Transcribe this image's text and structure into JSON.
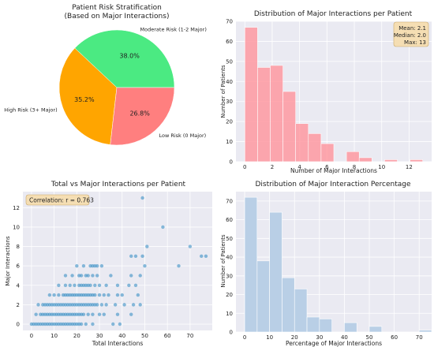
{
  "chart_data": [
    {
      "type": "pie",
      "title": "Patient Risk Stratification\n(Based on Major Interactions)",
      "slices": [
        {
          "label": "Moderate Risk (1-2 Major)",
          "pct_text": "38.0%",
          "value": 38.0,
          "color": "#4bea82"
        },
        {
          "label": "High Risk (3+ Major)",
          "pct_text": "35.2%",
          "value": 35.2,
          "color": "#ffa500"
        },
        {
          "label": "Low Risk (0 Major)",
          "pct_text": "26.8%",
          "value": 26.8,
          "color": "#ff7f7f"
        }
      ]
    },
    {
      "type": "bar",
      "title": "Distribution of Major Interactions per Patient",
      "xlabel": "Number of Major Interactions",
      "ylabel": "Number of Patients",
      "xlim": [
        -0.65,
        13.65
      ],
      "ylim": [
        0,
        70
      ],
      "xticks": [
        0,
        2,
        4,
        6,
        8,
        10,
        12
      ],
      "yticks": [
        0,
        10,
        20,
        30,
        40,
        50,
        60,
        70
      ],
      "bin_width": 0.929,
      "bin_starts": [
        0,
        0.929,
        1.857,
        2.786,
        3.714,
        4.643,
        5.571,
        6.5,
        7.429,
        8.357,
        9.286,
        10.214,
        11.143,
        12.071
      ],
      "values": [
        67,
        47,
        48,
        35,
        19,
        14,
        9,
        0,
        5,
        2,
        0,
        1,
        0,
        1
      ],
      "color": "#ff9aa2",
      "stats_box": [
        "Mean: 2.1",
        "Median: 2.0",
        "Max: 13"
      ],
      "grid": true
    },
    {
      "type": "scatter",
      "title": "Total vs Major Interactions per Patient",
      "xlabel": "Total Interactions",
      "ylabel": "Major Interactions",
      "xlim": [
        -3.8,
        79.8
      ],
      "ylim": [
        -0.65,
        13.65
      ],
      "xticks": [
        0,
        10,
        20,
        30,
        40,
        50,
        60,
        70
      ],
      "yticks": [
        0,
        2,
        4,
        6,
        8,
        10,
        12
      ],
      "annotation": "Correlation: r = 0.763",
      "color": "#3b8fc4",
      "points": [
        [
          0,
          0
        ],
        [
          1,
          0
        ],
        [
          2,
          0
        ],
        [
          3,
          0
        ],
        [
          4,
          0
        ],
        [
          5,
          0
        ],
        [
          6,
          0
        ],
        [
          7,
          0
        ],
        [
          8,
          0
        ],
        [
          9,
          0
        ],
        [
          10,
          0
        ],
        [
          11,
          0
        ],
        [
          12,
          0
        ],
        [
          13,
          0
        ],
        [
          14,
          0
        ],
        [
          15,
          0
        ],
        [
          16,
          0
        ],
        [
          17,
          0
        ],
        [
          18,
          0
        ],
        [
          19,
          0
        ],
        [
          20,
          0
        ],
        [
          21,
          0
        ],
        [
          22,
          0
        ],
        [
          24,
          0
        ],
        [
          27,
          0
        ],
        [
          36,
          0
        ],
        [
          39,
          0
        ],
        [
          2,
          1
        ],
        [
          4,
          1
        ],
        [
          5,
          1
        ],
        [
          6,
          1
        ],
        [
          7,
          1
        ],
        [
          8,
          1
        ],
        [
          9,
          1
        ],
        [
          10,
          1
        ],
        [
          11,
          1
        ],
        [
          12,
          1
        ],
        [
          13,
          1
        ],
        [
          14,
          1
        ],
        [
          15,
          1
        ],
        [
          16,
          1
        ],
        [
          17,
          1
        ],
        [
          18,
          1
        ],
        [
          19,
          1
        ],
        [
          20,
          1
        ],
        [
          21,
          1
        ],
        [
          22,
          1
        ],
        [
          23,
          1
        ],
        [
          25,
          1
        ],
        [
          27,
          1
        ],
        [
          30,
          1
        ],
        [
          32,
          1
        ],
        [
          38,
          1
        ],
        [
          44,
          1
        ],
        [
          3,
          2
        ],
        [
          5,
          2
        ],
        [
          6,
          2
        ],
        [
          7,
          2
        ],
        [
          8,
          2
        ],
        [
          9,
          2
        ],
        [
          10,
          2
        ],
        [
          11,
          2
        ],
        [
          12,
          2
        ],
        [
          13,
          2
        ],
        [
          14,
          2
        ],
        [
          15,
          2
        ],
        [
          16,
          2
        ],
        [
          17,
          2
        ],
        [
          18,
          2
        ],
        [
          19,
          2
        ],
        [
          20,
          2
        ],
        [
          21,
          2
        ],
        [
          22,
          2
        ],
        [
          23,
          2
        ],
        [
          24,
          2
        ],
        [
          25,
          2
        ],
        [
          26,
          2
        ],
        [
          27,
          2
        ],
        [
          28,
          2
        ],
        [
          29,
          2
        ],
        [
          31,
          2
        ],
        [
          33,
          2
        ],
        [
          37,
          2
        ],
        [
          41,
          2
        ],
        [
          45,
          2
        ],
        [
          48,
          2
        ],
        [
          8,
          3
        ],
        [
          10,
          3
        ],
        [
          12,
          3
        ],
        [
          14,
          3
        ],
        [
          15,
          3
        ],
        [
          16,
          3
        ],
        [
          17,
          3
        ],
        [
          18,
          3
        ],
        [
          19,
          3
        ],
        [
          20,
          3
        ],
        [
          21,
          3
        ],
        [
          22,
          3
        ],
        [
          23,
          3
        ],
        [
          24,
          3
        ],
        [
          25,
          3
        ],
        [
          26,
          3
        ],
        [
          27,
          3
        ],
        [
          28,
          3
        ],
        [
          30,
          3
        ],
        [
          32,
          3
        ],
        [
          34,
          3
        ],
        [
          38,
          3
        ],
        [
          40,
          3
        ],
        [
          47,
          3
        ],
        [
          12,
          4
        ],
        [
          15,
          4
        ],
        [
          17,
          4
        ],
        [
          19,
          4
        ],
        [
          21,
          4
        ],
        [
          22,
          4
        ],
        [
          23,
          4
        ],
        [
          24,
          4
        ],
        [
          25,
          4
        ],
        [
          26,
          4
        ],
        [
          28,
          4
        ],
        [
          30,
          4
        ],
        [
          33,
          4
        ],
        [
          38,
          4
        ],
        [
          43,
          4
        ],
        [
          46,
          4
        ],
        [
          15,
          5
        ],
        [
          18,
          5
        ],
        [
          21,
          5
        ],
        [
          22,
          5
        ],
        [
          24,
          5
        ],
        [
          25,
          5
        ],
        [
          27,
          5
        ],
        [
          29,
          5
        ],
        [
          35,
          5
        ],
        [
          44,
          5
        ],
        [
          48,
          5
        ],
        [
          20,
          6
        ],
        [
          23,
          6
        ],
        [
          26,
          6
        ],
        [
          27,
          6
        ],
        [
          28,
          6
        ],
        [
          29,
          6
        ],
        [
          31,
          6
        ],
        [
          50,
          6
        ],
        [
          65,
          6
        ],
        [
          44,
          7
        ],
        [
          46,
          7
        ],
        [
          49,
          7
        ],
        [
          75,
          7
        ],
        [
          77,
          7
        ],
        [
          51,
          8
        ],
        [
          70,
          8
        ],
        [
          58,
          10
        ],
        [
          49,
          13
        ]
      ],
      "grid": true
    },
    {
      "type": "bar",
      "title": "Distribution of Major Interaction Percentage",
      "xlabel": "Percentage of Major Interactions",
      "ylabel": "Number of Patients",
      "xlim": [
        -3.5,
        75.0
      ],
      "ylim": [
        0,
        75
      ],
      "xticks": [
        0,
        10,
        20,
        30,
        40,
        50,
        60,
        70
      ],
      "yticks": [
        0,
        10,
        20,
        30,
        40,
        50,
        60,
        70
      ],
      "bin_width": 5.0,
      "bin_starts": [
        0,
        5,
        10,
        15,
        20,
        25,
        30,
        35,
        40,
        45,
        50,
        55,
        60,
        65,
        70
      ],
      "values": [
        72,
        38,
        64,
        29,
        23,
        8,
        7,
        0,
        5,
        0,
        3,
        0,
        0,
        0,
        1
      ],
      "color": "#b9cfe6",
      "grid": true
    }
  ]
}
